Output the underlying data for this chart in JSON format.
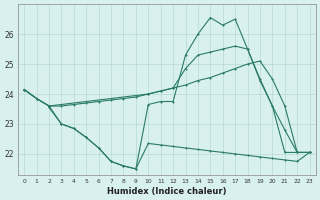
{
  "xlabel": "Humidex (Indice chaleur)",
  "bg_color": "#d8f0ee",
  "grid_color": "#b8d8d4",
  "line_color": "#2a7a6a",
  "yticks": [
    22,
    23,
    24,
    25,
    26
  ],
  "xticks": [
    0,
    1,
    2,
    3,
    4,
    5,
    6,
    7,
    8,
    9,
    10,
    11,
    12,
    13,
    14,
    15,
    16,
    17,
    18,
    19,
    20,
    21,
    22,
    23
  ],
  "lineA_x": [
    0,
    1,
    2,
    3,
    4,
    5,
    6,
    7,
    8,
    9,
    10,
    11,
    12,
    13,
    14,
    15,
    16,
    17,
    18,
    19,
    20,
    21,
    22,
    23
  ],
  "lineA_y": [
    24.15,
    23.85,
    23.6,
    23.6,
    23.65,
    23.7,
    23.75,
    23.8,
    23.85,
    23.9,
    24.0,
    24.1,
    24.2,
    24.3,
    24.45,
    24.55,
    24.7,
    24.85,
    25.0,
    25.1,
    24.5,
    23.6,
    22.05,
    22.05
  ],
  "lineB_x": [
    0,
    1,
    2,
    10,
    11,
    12,
    13,
    14,
    15,
    16,
    17,
    18,
    19,
    20,
    21,
    22,
    23
  ],
  "lineB_y": [
    24.15,
    23.85,
    23.6,
    24.0,
    24.1,
    24.2,
    24.85,
    25.3,
    25.4,
    25.5,
    25.6,
    25.5,
    24.5,
    23.6,
    22.05,
    22.05,
    22.05
  ],
  "lineC_x": [
    0,
    1,
    2,
    3,
    4,
    5,
    6,
    7,
    8,
    9,
    10,
    11,
    12,
    13,
    14,
    15,
    16,
    17,
    18,
    19,
    20,
    21,
    22,
    23
  ],
  "lineC_y": [
    24.15,
    23.85,
    23.6,
    23.0,
    22.85,
    22.55,
    22.2,
    21.75,
    21.6,
    21.5,
    23.65,
    23.75,
    23.75,
    25.3,
    26.0,
    26.55,
    26.3,
    26.5,
    25.5,
    24.45,
    23.6,
    22.8,
    22.05,
    22.05
  ],
  "lineD_x": [
    2,
    3,
    4,
    5,
    6,
    7,
    8,
    9,
    10,
    11,
    12,
    13,
    14,
    15,
    16,
    17,
    18,
    19,
    20,
    21,
    22,
    23
  ],
  "lineD_y": [
    23.55,
    23.0,
    22.85,
    22.55,
    22.2,
    21.75,
    21.6,
    21.5,
    22.35,
    22.3,
    22.25,
    22.2,
    22.15,
    22.1,
    22.05,
    22.0,
    21.95,
    21.9,
    21.85,
    21.8,
    21.75,
    22.05
  ]
}
